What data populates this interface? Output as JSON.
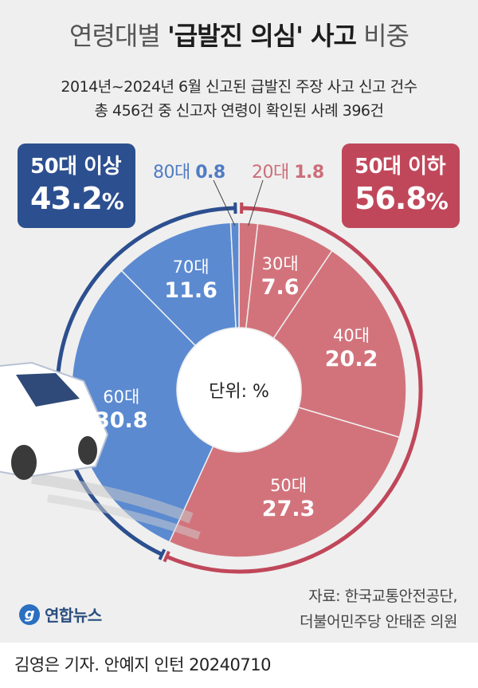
{
  "title": {
    "normal_1": "연령대별 ",
    "bold": "'급발진 의심' 사고",
    "normal_2": " 비중"
  },
  "subtitle_1": "2014년~2024년 6월 신고된 급발진 주장 사고 신고 건수",
  "subtitle_2": "총 456건 중 신고자 연령이 확인된 사례 396건",
  "badge_left": {
    "label": "50대 이상",
    "value": "43.2",
    "unit": "%"
  },
  "badge_right": {
    "label": "50대 이하",
    "value": "56.8",
    "unit": "%"
  },
  "small_left": {
    "age": "80대",
    "value": "0.8"
  },
  "small_right": {
    "age": "20대",
    "value": "1.8"
  },
  "unit_label": "단위: %",
  "source": {
    "line1": "자료: 한국교통안전공단,",
    "line2": "더불어민주당 안태준 의원"
  },
  "logo_text": "연합뉴스",
  "footer": "김영은 기자. 안예지 인턴  20240710",
  "colors": {
    "blue": "#5b8ad1",
    "blue_dark": "#2c4f8f",
    "red": "#d2737c",
    "red_dark": "#c0475a"
  },
  "chart_data": {
    "type": "pie",
    "title": "연령대별 '급발진 의심' 사고 비중",
    "unit": "%",
    "slices": [
      {
        "label": "20대",
        "value": 1.8,
        "group": "50대 이하"
      },
      {
        "label": "30대",
        "value": 7.6,
        "group": "50대 이하"
      },
      {
        "label": "40대",
        "value": 20.2,
        "group": "50대 이하"
      },
      {
        "label": "50대",
        "value": 27.3,
        "group": "50대 이하"
      },
      {
        "label": "60대",
        "value": 30.8,
        "group": "50대 이상"
      },
      {
        "label": "70대",
        "value": 11.6,
        "group": "50대 이상"
      },
      {
        "label": "80대",
        "value": 0.8,
        "group": "50대 이상"
      }
    ],
    "groups": [
      {
        "name": "50대 이하",
        "value": 56.8
      },
      {
        "name": "50대 이상",
        "value": 43.2
      }
    ]
  }
}
